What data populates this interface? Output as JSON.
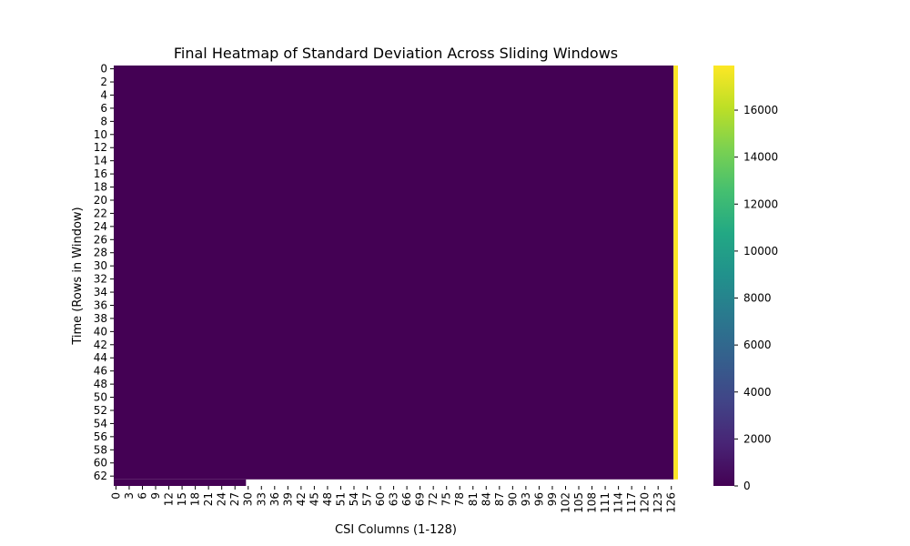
{
  "chart_data": {
    "type": "heatmap",
    "title": "Final Heatmap of Standard Deviation Across Sliding Windows",
    "xlabel": "CSI Columns (1-128)",
    "ylabel": "Time (Rows in Window)",
    "n_cols": 128,
    "n_rows": 64,
    "x_tick_labels": [
      "0",
      "3",
      "6",
      "9",
      "12",
      "15",
      "18",
      "21",
      "24",
      "27",
      "30",
      "33",
      "36",
      "39",
      "42",
      "45",
      "48",
      "51",
      "54",
      "57",
      "60",
      "63",
      "66",
      "69",
      "72",
      "75",
      "78",
      "81",
      "84",
      "87",
      "90",
      "93",
      "96",
      "99",
      "102",
      "105",
      "108",
      "111",
      "114",
      "117",
      "120",
      "123",
      "126"
    ],
    "y_tick_labels": [
      "0",
      "2",
      "4",
      "6",
      "8",
      "10",
      "12",
      "14",
      "16",
      "18",
      "20",
      "22",
      "24",
      "26",
      "28",
      "30",
      "32",
      "34",
      "36",
      "38",
      "40",
      "42",
      "44",
      "46",
      "48",
      "50",
      "52",
      "54",
      "56",
      "58",
      "60",
      "62"
    ],
    "value_range": [
      0,
      17900
    ],
    "background_value": 0,
    "high_value_column": 127,
    "high_value": 17900,
    "last_row_filled_columns": 30,
    "colormap": "viridis",
    "colorbar": {
      "ticks": [
        "0",
        "2000",
        "4000",
        "6000",
        "8000",
        "10000",
        "12000",
        "14000",
        "16000"
      ],
      "tick_values": [
        0,
        2000,
        4000,
        6000,
        8000,
        10000,
        12000,
        14000,
        16000
      ]
    },
    "grid": false
  }
}
